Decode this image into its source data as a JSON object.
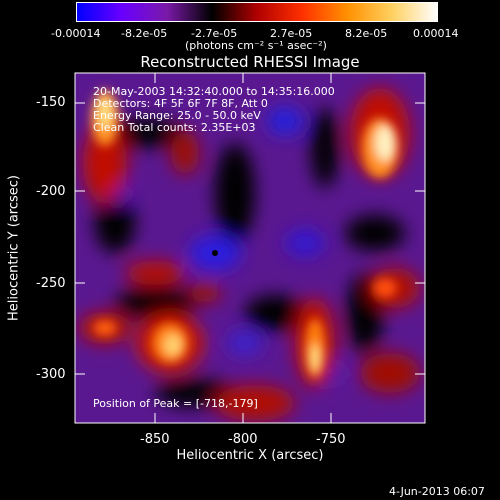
{
  "colorbar": {
    "tick_labels": [
      "-0.00014",
      "-8.2e-05",
      "-2.7e-05",
      "2.7e-05",
      "8.2e-05",
      "0.00014"
    ],
    "unit_label": "(photons cm⁻² s⁻¹ asec⁻²)",
    "colors": [
      "#0000ff",
      "#6a00ff",
      "#7a1aa8",
      "#000000",
      "#b00000",
      "#ff3000",
      "#ff9000",
      "#ffd060",
      "#ffffff"
    ]
  },
  "title": "Reconstructed RHESSI Image",
  "annotations": {
    "time": "20-May-2003 14:32:40.000 to 14:35:16.000",
    "detectors": "Detectors: 4F 5F 6F 7F 8F, Att 0",
    "energy": "Energy Range: 25.0 - 50.0 keV",
    "clean": "Clean     Total counts: 2.35E+03",
    "peak": "Position of Peak = [-718,-179]"
  },
  "axes": {
    "xlabel": "Heliocentric X (arcsec)",
    "ylabel": "Heliocentric Y (arcsec)",
    "xticks": [
      "-850",
      "-800",
      "-750"
    ],
    "yticks": [
      "-150",
      "-200",
      "-250",
      "-300"
    ]
  },
  "footer": {
    "date": "4-Jun-2013 06:07"
  }
}
